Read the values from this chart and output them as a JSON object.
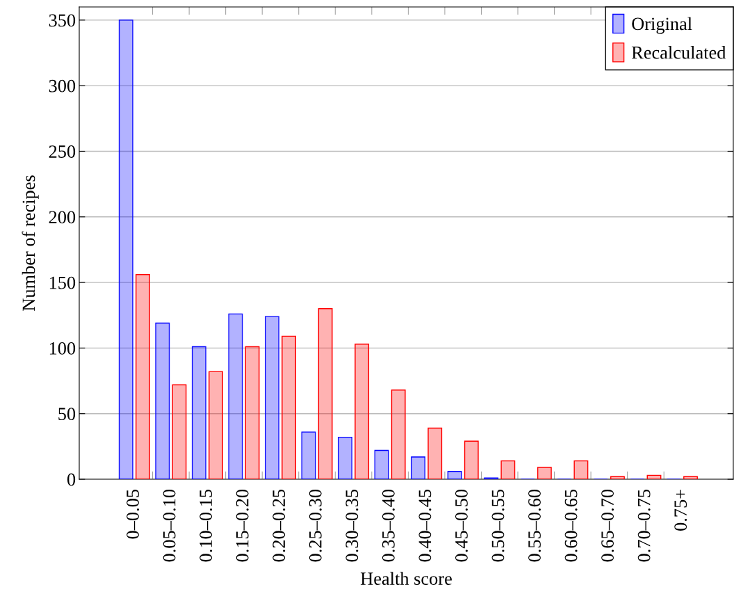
{
  "chart_data": {
    "type": "bar",
    "xlabel": "Health score",
    "ylabel": "Number of recipes",
    "categories": [
      "0–0.05",
      "0.05–0.10",
      "0.10–0.15",
      "0.15–0.20",
      "0.20–0.25",
      "0.25–0.30",
      "0.30–0.35",
      "0.35–0.40",
      "0.40–0.45",
      "0.45–0.50",
      "0.50–0.55",
      "0.55–0.60",
      "0.60–0.65",
      "0.65–0.70",
      "0.70–0.75",
      "0.75+"
    ],
    "series": [
      {
        "name": "Original",
        "color": "#0000ff",
        "values": [
          350,
          119,
          101,
          126,
          124,
          36,
          32,
          22,
          17,
          6,
          1,
          0,
          0,
          0,
          0,
          0
        ]
      },
      {
        "name": "Recalculated",
        "color": "#ff0000",
        "values": [
          156,
          72,
          82,
          101,
          109,
          130,
          103,
          68,
          39,
          29,
          14,
          9,
          14,
          2,
          3,
          2
        ]
      }
    ],
    "ylim": [
      0,
      360
    ],
    "yticks": [
      0,
      50,
      100,
      150,
      200,
      250,
      300,
      350
    ],
    "grid": "y",
    "legend": "top right"
  }
}
